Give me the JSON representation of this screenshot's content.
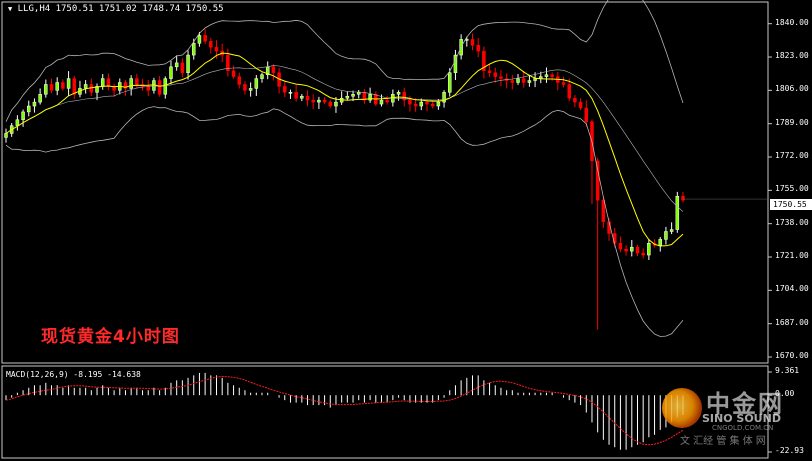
{
  "header": {
    "symbol_line": "LLG,H4  1750.51 1751.02 1748.74 1750.55"
  },
  "watermark": {
    "title": "现货黄金4小时图",
    "logo_cn": "中金网",
    "logo_en": "SINO SOUND",
    "logo_url": "CNGOLD.COM.CN",
    "slogan": "文 汇经 管 集 体 网"
  },
  "macd": {
    "label": "MACD(12,26,9) -8.195 -14.638",
    "axis_labels": [
      "9.361",
      "0.00",
      "-22.93"
    ],
    "levels": [
      9.361,
      0.0,
      -22.93
    ]
  },
  "price_axis": {
    "labels": [
      "1840.00",
      "1823.00",
      "1806.00",
      "1789.00",
      "1772.00",
      "1755.00",
      "1738.00",
      "1721.00",
      "1704.00",
      "1687.00",
      "1670.00"
    ],
    "levels": [
      1840,
      1823,
      1806,
      1789,
      1772,
      1755,
      1738,
      1721,
      1704,
      1687,
      1670
    ],
    "current_label": "1750.55",
    "current_value": 1750.55
  },
  "colors": {
    "bull": "#ffffff",
    "bull_fill": "#7fff00",
    "bear": "#ff0000",
    "ma": "#ffff00",
    "bands": "#b4b4b4",
    "macd_hist": "#ffffff",
    "macd_signal": "#ff2020"
  },
  "chart_data": {
    "type": "candlestick",
    "timeframe": "H4",
    "ylim": [
      1670,
      1848
    ],
    "ohlc_close_series": [
      1784,
      1788,
      1791,
      1795,
      1798,
      1800,
      1804,
      1809,
      1806,
      1810,
      1807,
      1812,
      1804,
      1807,
      1809,
      1805,
      1808,
      1812,
      1808,
      1806,
      1810,
      1807,
      1812,
      1809,
      1808,
      1806,
      1811,
      1804,
      1812,
      1818,
      1820,
      1815,
      1824,
      1830,
      1834,
      1831,
      1828,
      1826,
      1824,
      1816,
      1813,
      1809,
      1806,
      1807,
      1812,
      1814,
      1818,
      1815,
      1808,
      1805,
      1805,
      1802,
      1803,
      1801,
      1800,
      1801,
      1800,
      1798,
      1800,
      1802,
      1803,
      1804,
      1805,
      1801,
      1804,
      1799,
      1801,
      1800,
      1804,
      1805,
      1801,
      1799,
      1798,
      1800,
      1799,
      1798,
      1800,
      1805,
      1815,
      1824,
      1832,
      1832,
      1829,
      1826,
      1816,
      1815,
      1813,
      1812,
      1811,
      1810,
      1812,
      1810,
      1811,
      1812,
      1813,
      1814,
      1813,
      1810,
      1809,
      1802,
      1800,
      1797,
      1790,
      1770,
      1750,
      1739,
      1733,
      1728,
      1725,
      1724,
      1726,
      1723,
      1722,
      1728,
      1727,
      1730,
      1734,
      1735,
      1752,
      1750
    ],
    "macd_hist_series": [
      -2,
      -1,
      1,
      2,
      3,
      4,
      4,
      5,
      4,
      4,
      3,
      4,
      3,
      3,
      3,
      2,
      3,
      4,
      3,
      2,
      3,
      2,
      3,
      3,
      2,
      2,
      3,
      2,
      3,
      5,
      6,
      6,
      7,
      8,
      9,
      9,
      8,
      8,
      7,
      5,
      4,
      3,
      2,
      1,
      1,
      1,
      1,
      0,
      -1,
      -2,
      -3,
      -3,
      -3,
      -4,
      -4,
      -4,
      -4,
      -5,
      -4,
      -3,
      -3,
      -3,
      -2,
      -3,
      -2,
      -3,
      -3,
      -3,
      -2,
      -1,
      -2,
      -3,
      -3,
      -3,
      -3,
      -3,
      -2,
      -1,
      2,
      4,
      6,
      7,
      8,
      8,
      6,
      5,
      4,
      3,
      2,
      2,
      1,
      1,
      1,
      1,
      1,
      1,
      1,
      0,
      -1,
      -2,
      -3,
      -4,
      -7,
      -11,
      -15,
      -18,
      -20,
      -21,
      -22,
      -22,
      -21,
      -20,
      -19,
      -17,
      -16,
      -14,
      -13,
      -11,
      -9,
      -8
    ],
    "last_macd": -8.195,
    "last_signal": -14.638
  }
}
